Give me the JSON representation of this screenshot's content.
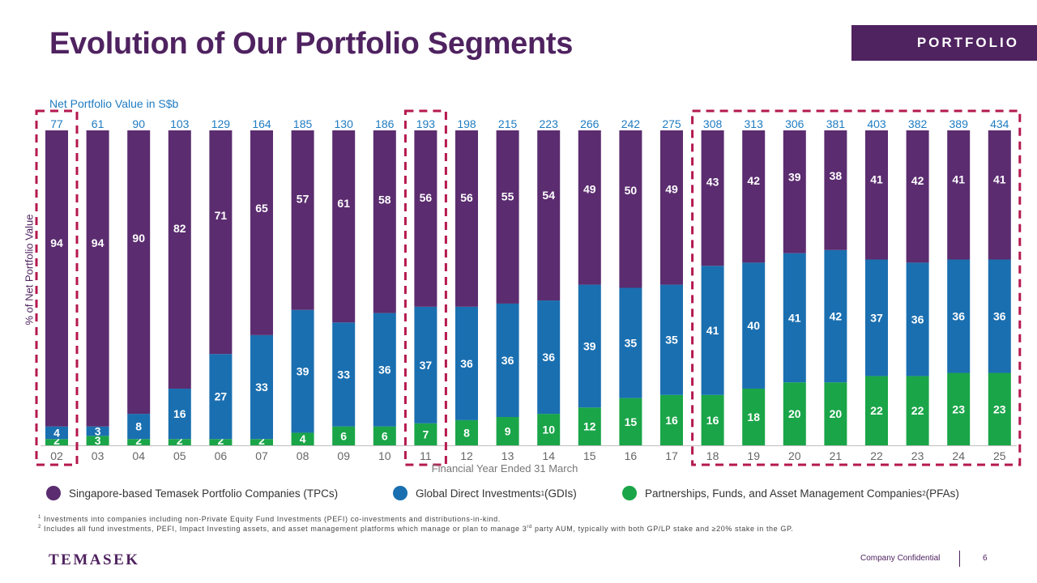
{
  "header": {
    "title": "Evolution of Our Portfolio Segments",
    "section_tag": "PORTFOLIO"
  },
  "colors": {
    "tpc": "#5b2c6f",
    "gdi": "#1a6fb0",
    "pfa": "#1aa548",
    "brand": "#4f2260",
    "value_text": "#1f7bc1",
    "highlight_box": "#b5184f"
  },
  "chart_data": {
    "type": "bar",
    "stacked": true,
    "subtitle": "Net Portfolio Value in S$b",
    "ylabel": "% of Net Portfolio Value",
    "xlabel": "Financial Year Ended 31 March",
    "ylim": [
      0,
      100
    ],
    "categories": [
      "02",
      "03",
      "04",
      "05",
      "06",
      "07",
      "08",
      "09",
      "10",
      "11",
      "12",
      "13",
      "14",
      "15",
      "16",
      "17",
      "18",
      "19",
      "20",
      "21",
      "22",
      "23",
      "24",
      "25"
    ],
    "net_portfolio_value": [
      77,
      61,
      90,
      103,
      129,
      164,
      185,
      130,
      186,
      193,
      198,
      215,
      223,
      266,
      242,
      275,
      308,
      313,
      306,
      381,
      403,
      382,
      389,
      434
    ],
    "series": [
      {
        "name": "Partnerships, Funds, and Asset Management Companies",
        "key": "pfa",
        "values": [
          2,
          3,
          2,
          2,
          2,
          2,
          4,
          6,
          6,
          7,
          8,
          9,
          10,
          12,
          15,
          16,
          16,
          18,
          20,
          20,
          22,
          22,
          23,
          23
        ]
      },
      {
        "name": "Global Direct Investments",
        "key": "gdi",
        "values": [
          4,
          3,
          8,
          16,
          27,
          33,
          39,
          33,
          36,
          37,
          36,
          36,
          36,
          39,
          35,
          35,
          41,
          40,
          41,
          42,
          37,
          36,
          36,
          36
        ]
      },
      {
        "name": "Singapore-based Temasek Portfolio Companies (TPCs)",
        "key": "tpc",
        "values": [
          94,
          94,
          90,
          82,
          71,
          65,
          57,
          61,
          58,
          56,
          56,
          55,
          54,
          49,
          50,
          49,
          43,
          42,
          39,
          38,
          41,
          42,
          41,
          41
        ]
      }
    ],
    "highlighted_groups": [
      [
        "02"
      ],
      [
        "11"
      ],
      [
        "18",
        "19",
        "20",
        "21",
        "22",
        "23",
        "24",
        "25"
      ]
    ]
  },
  "legend": [
    {
      "key": "tpc",
      "label": "Singapore-based Temasek Portfolio Companies (TPCs)",
      "sup": "",
      "suffix": ""
    },
    {
      "key": "gdi",
      "label": "Global Direct Investments",
      "sup": "1",
      "suffix": " (GDIs)"
    },
    {
      "key": "pfa",
      "label": "Partnerships, Funds, and Asset Management Companies",
      "sup": "2",
      "suffix": " (PFAs)"
    }
  ],
  "footnotes": [
    {
      "num": "1",
      "text": " Investments into companies including non-Private Equity Fund Investments (PEFI) co-investments and distributions-in-kind."
    },
    {
      "num": "2",
      "text": " Includes all fund investments, PEFI, Impact Investing assets, and asset management platforms which manage or plan to manage 3",
      "sup2": "rd",
      "text2": " party AUM, typically with both GP/LP stake and ≥20% stake in the GP."
    }
  ],
  "footer": {
    "logo": "TEMASEK",
    "confidential": "Company Confidential",
    "page": "6"
  }
}
